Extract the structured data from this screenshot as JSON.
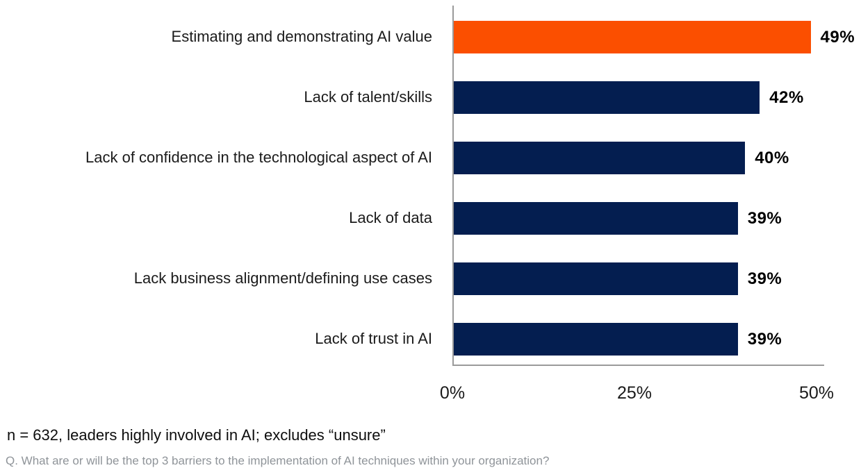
{
  "chart_data": {
    "type": "bar",
    "orientation": "horizontal",
    "title": "",
    "xlabel": "",
    "ylabel": "",
    "categories": [
      "Estimating and demonstrating AI value",
      "Lack of talent/skills",
      "Lack of confidence in the technological aspect of AI",
      "Lack of data",
      "Lack business alignment/defining use cases",
      "Lack of trust in AI"
    ],
    "values": [
      49,
      42,
      40,
      39,
      39,
      39
    ],
    "value_labels": [
      "49%",
      "42%",
      "40%",
      "39%",
      "39%",
      "39%"
    ],
    "xlim": [
      0,
      50
    ],
    "x_ticks": [
      "0%",
      "25%",
      "50%"
    ],
    "grid": "off",
    "legend": "none",
    "highlight_index": 0,
    "highlight_color": "#FB4F00",
    "bar_color": "#041E50",
    "axis_color": "#9a9a9a"
  },
  "footnotes": {
    "sample": "n = 632, leaders highly involved in AI; excludes “unsure”",
    "question": "Q. What are or will be the top 3 barriers to the implementation of AI techniques within your organization?"
  }
}
